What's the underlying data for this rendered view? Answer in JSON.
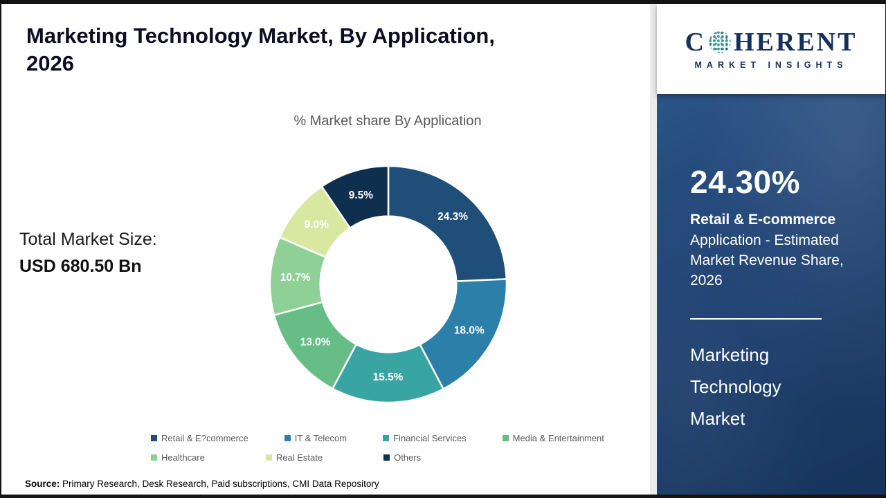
{
  "header": {
    "title_line1": "Marketing Technology Market, By Application,",
    "title_line2": "2026"
  },
  "logo": {
    "c": "C",
    "rest": "HERENT",
    "subtitle": "MARKET INSIGHTS",
    "navy": "#16305e",
    "teal": "#2f9e9b"
  },
  "left": {
    "total_label": "Total Market Size:",
    "total_value": "USD 680.50 Bn",
    "source_label": "Source:",
    "source_text": " Primary Research, Desk Research, Paid subscriptions, CMI Data Repository"
  },
  "chart_data": {
    "type": "pie",
    "subtype": "donut",
    "title": "% Market share By Application",
    "categories": [
      "Retail & E-commerce",
      "IT & Telecom",
      "Financial Services",
      "Media & Entertainment",
      "Healthcare",
      "Real Estate",
      "Others"
    ],
    "values": [
      24.3,
      18.0,
      15.5,
      13.0,
      10.7,
      9.0,
      9.5
    ],
    "labels": [
      "24.3%",
      "18.0%",
      "15.5%",
      "13.0%",
      "10.7%",
      "9.0%",
      "9.5%"
    ],
    "colors": [
      "#1F4E79",
      "#2C7FA8",
      "#39A5A3",
      "#66BD86",
      "#8ED096",
      "#D9E8A0",
      "#0E2F4E"
    ],
    "legend_labels": [
      "Retail & E?commerce",
      "IT & Telecom",
      "Financial Services",
      "Media & Entertainment",
      "Healthcare",
      "Real Estate",
      "Others"
    ],
    "legend_rows": [
      [
        0,
        1,
        2,
        3
      ],
      [
        4,
        5,
        6
      ]
    ],
    "start_angle": "top",
    "direction": "clockwise",
    "inner_radius_ratio": 0.575,
    "label_color": "#FFFFFF",
    "total": 100
  },
  "side_panel": {
    "stat_value": "24.30%",
    "stat_title": "Retail & E-commerce",
    "stat_desc": "Application - Estimated Market Revenue Share, 2026",
    "product_name": "Marketing Technology Market"
  }
}
